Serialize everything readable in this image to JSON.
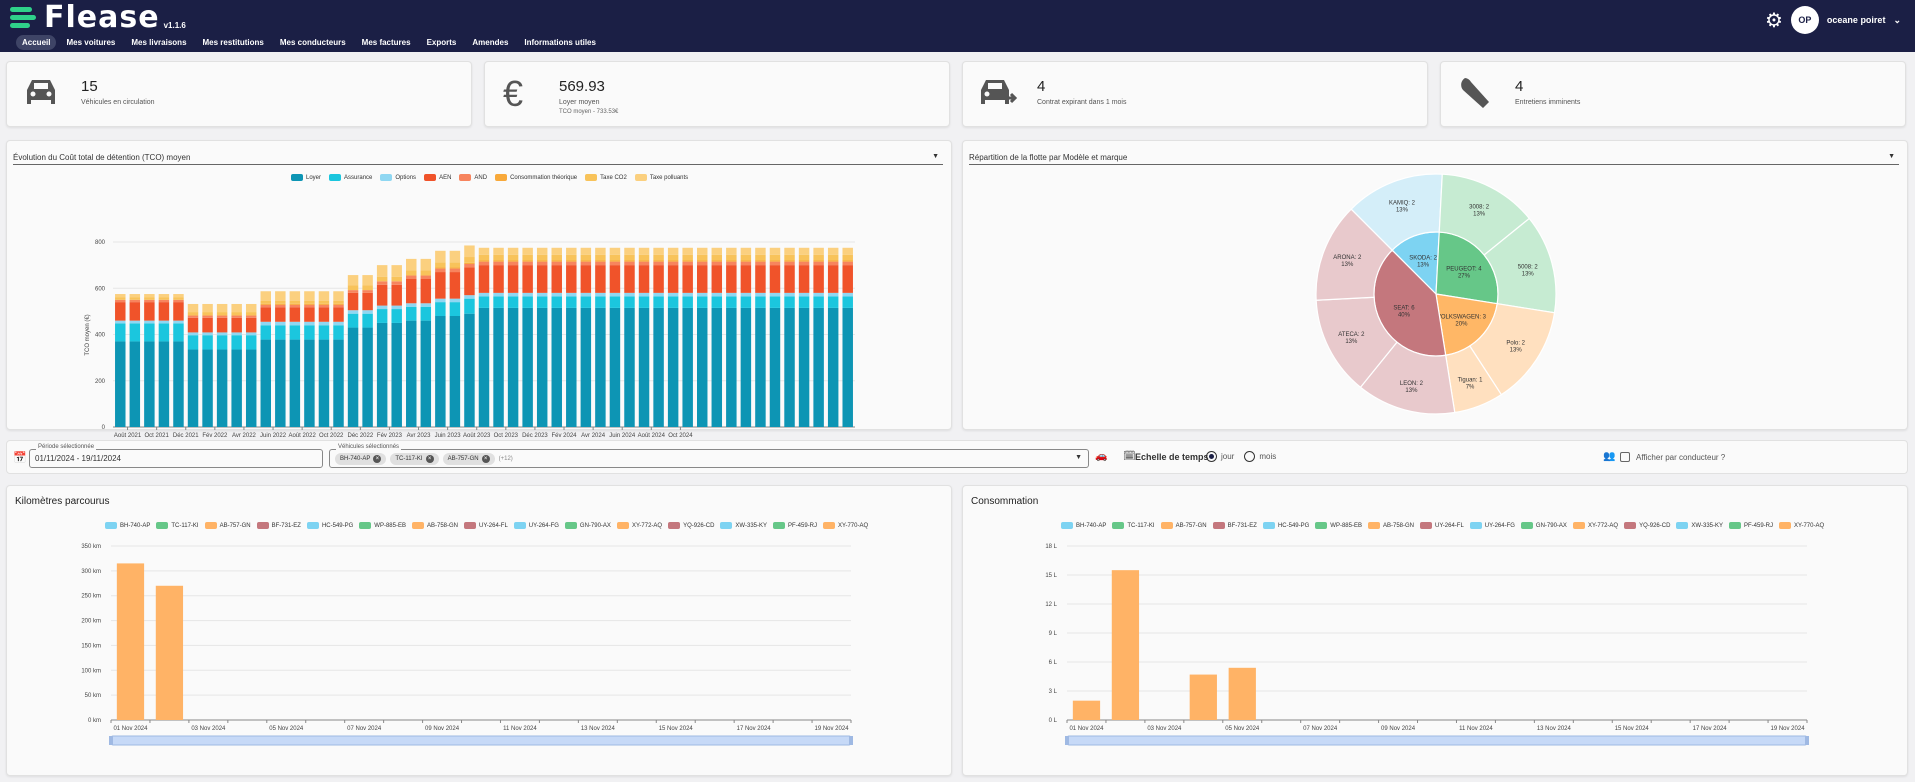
{
  "app": {
    "logo": "Flease",
    "version": "v1.1.6"
  },
  "nav": {
    "items": [
      "Accueil",
      "Mes voitures",
      "Mes livraisons",
      "Mes restitutions",
      "Mes conducteurs",
      "Mes factures",
      "Exports",
      "Amendes",
      "Informations utiles"
    ],
    "active": 0
  },
  "user": {
    "initials": "OP",
    "name": "oceane poiret"
  },
  "kpis": [
    {
      "value": "15",
      "label": "Véhicules en circulation",
      "sub": "",
      "icon": "car-icon"
    },
    {
      "value": "569.93",
      "label": "Loyer moyen",
      "sub": "TCO moyen - 733.53€",
      "icon": "euro-icon"
    },
    {
      "value": "4",
      "label": "Contrat expirant dans 1 mois",
      "sub": "",
      "icon": "car-return-icon"
    },
    {
      "value": "4",
      "label": "Entretiens imminents",
      "sub": "",
      "icon": "wrench-icon"
    }
  ],
  "tco_panel": {
    "select_prefix": "Évolution du",
    "select_value": "Coût total de détention (TCO) moyen"
  },
  "fleet_panel": {
    "select_prefix": "Répartition de la flotte par",
    "select_value": "Modèle et marque"
  },
  "filter": {
    "period_label": "Période sélectionnée",
    "period_value": "01/11/2024 - 19/11/2024",
    "vehicles_label": "Véhicules sélectionnés",
    "chips": [
      "BH-740-AP",
      "TC-117-KI",
      "AB-757-GN"
    ],
    "more": "(+12)",
    "scale_label": "Echelle de temps",
    "scale_options": [
      "jour",
      "mois"
    ],
    "scale_selected": "jour",
    "per_driver_label": "Afficher par conducteur ?"
  },
  "colors": {
    "tco": [
      "#0d95b4",
      "#1bc6de",
      "#8fd7f2",
      "#f0532a",
      "#f7845e",
      "#f8a93a",
      "#f8c35a",
      "#fbd07f"
    ]
  },
  "chart_data": [
    {
      "type": "bar",
      "stacked": true,
      "ylabel": "TCO moyen (€)",
      "ylim": [
        0,
        800
      ],
      "yticks": [
        0,
        200,
        400,
        600,
        800
      ],
      "tick_labels": [
        "Août 2021",
        "Oct 2021",
        "Déc 2021",
        "Fév 2022",
        "Avr 2022",
        "Juin 2022",
        "Août 2022",
        "Oct 2022",
        "Déc 2022",
        "Fév 2023",
        "Avr 2023",
        "Juin 2023",
        "Août 2023",
        "Oct 2023",
        "Déc 2023",
        "Fév 2024",
        "Avr 2024",
        "Juin 2024",
        "Août 2024",
        "Oct 2024"
      ],
      "series_names": [
        "Loyer",
        "Assurance",
        "Options",
        "AEN",
        "AND",
        "Consommation théorique",
        "Taxe CO2",
        "Taxe polluants"
      ],
      "groups": [
        {
          "count": 5,
          "v": [
            370,
            78,
            12,
            80,
            10,
            0,
            10,
            15
          ]
        },
        {
          "count": 5,
          "v": [
            335,
            62,
            12,
            63,
            10,
            0,
            15,
            35
          ]
        },
        {
          "count": 6,
          "v": [
            378,
            62,
            15,
            63,
            10,
            5,
            12,
            42
          ]
        },
        {
          "count": 2,
          "v": [
            430,
            60,
            15,
            75,
            12,
            0,
            20,
            45
          ]
        },
        {
          "count": 2,
          "v": [
            450,
            60,
            15,
            90,
            15,
            0,
            20,
            50
          ]
        },
        {
          "count": 2,
          "v": [
            460,
            60,
            15,
            105,
            15,
            0,
            22,
            50
          ]
        },
        {
          "count": 2,
          "v": [
            480,
            60,
            15,
            115,
            15,
            5,
            22,
            50
          ]
        },
        {
          "count": 1,
          "v": [
            490,
            65,
            15,
            120,
            15,
            5,
            25,
            50
          ]
        },
        {
          "count": 26,
          "v": [
            515,
            50,
            15,
            120,
            15,
            5,
            25,
            30
          ]
        }
      ]
    },
    {
      "type": "pie",
      "inner": [
        {
          "name": "SKODA",
          "count": 2,
          "pct": "13%",
          "color": "#7dd3f2"
        },
        {
          "name": "PEUGEOT",
          "count": 4,
          "pct": "27%",
          "color": "#66c788"
        },
        {
          "name": "VOLKSWAGEN",
          "count": 3,
          "pct": "20%",
          "color": "#ffb766"
        },
        {
          "name": "SEAT",
          "count": 6,
          "pct": "40%",
          "color": "#c4777d"
        }
      ],
      "outer": [
        {
          "name": "KAMIQ",
          "count": 2,
          "pct": "13%",
          "color": "#d4eef9"
        },
        {
          "name": "3008",
          "count": 2,
          "pct": "13%",
          "color": "#c6ebd2"
        },
        {
          "name": "5008",
          "count": 2,
          "pct": "13%",
          "color": "#c6ebd2"
        },
        {
          "name": "Polo",
          "count": 2,
          "pct": "13%",
          "color": "#ffe0bf"
        },
        {
          "name": "Tiguan",
          "count": 1,
          "pct": "7%",
          "color": "#ffe0bf"
        },
        {
          "name": "LEON",
          "count": 2,
          "pct": "13%",
          "color": "#e8c9cc"
        },
        {
          "name": "ATECA",
          "count": 2,
          "pct": "13%",
          "color": "#e8c9cc"
        },
        {
          "name": "ARONA",
          "count": 2,
          "pct": "13%",
          "color": "#e8c9cc"
        }
      ]
    },
    {
      "type": "bar",
      "title": "Kilomètres parcourus",
      "ylim": [
        0,
        350
      ],
      "yticks": [
        "0 km",
        "50 km",
        "100 km",
        "150 km",
        "200 km",
        "250 km",
        "300 km",
        "350 km"
      ],
      "categories": [
        "01 Nov 2024",
        "02 Nov 2024",
        "03 Nov 2024",
        "04 Nov 2024",
        "05 Nov 2024",
        "06 Nov 2024",
        "07 Nov 2024",
        "08 Nov 2024",
        "09 Nov 2024",
        "10 Nov 2024",
        "11 Nov 2024",
        "12 Nov 2024",
        "13 Nov 2024",
        "14 Nov 2024",
        "15 Nov 2024",
        "16 Nov 2024",
        "17 Nov 2024",
        "18 Nov 2024",
        "19 Nov 2024"
      ],
      "tick_labels": [
        "01 Nov 2024",
        "03 Nov 2024",
        "05 Nov 2024",
        "07 Nov 2024",
        "09 Nov 2024",
        "11 Nov 2024",
        "13 Nov 2024",
        "15 Nov 2024",
        "17 Nov 2024",
        "19 Nov 2024"
      ],
      "values": [
        315,
        270,
        0,
        0,
        0,
        0,
        0,
        0,
        0,
        0,
        0,
        0,
        0,
        0,
        0,
        0,
        0,
        0,
        0
      ],
      "bar_color": "#ffb366"
    },
    {
      "type": "bar",
      "title": "Consommation",
      "ylim": [
        0,
        18
      ],
      "yticks": [
        "0 L",
        "3 L",
        "6 L",
        "9 L",
        "12 L",
        "15 L",
        "18 L"
      ],
      "categories": [
        "01 Nov 2024",
        "02 Nov 2024",
        "03 Nov 2024",
        "04 Nov 2024",
        "05 Nov 2024",
        "06 Nov 2024",
        "07 Nov 2024",
        "08 Nov 2024",
        "09 Nov 2024",
        "10 Nov 2024",
        "11 Nov 2024",
        "12 Nov 2024",
        "13 Nov 2024",
        "14 Nov 2024",
        "15 Nov 2024",
        "16 Nov 2024",
        "17 Nov 2024",
        "18 Nov 2024",
        "19 Nov 2024"
      ],
      "tick_labels": [
        "01 Nov 2024",
        "03 Nov 2024",
        "05 Nov 2024",
        "07 Nov 2024",
        "09 Nov 2024",
        "11 Nov 2024",
        "13 Nov 2024",
        "15 Nov 2024",
        "17 Nov 2024",
        "19 Nov 2024"
      ],
      "values": [
        2,
        15.5,
        0,
        4.7,
        5.4,
        0,
        0,
        0,
        0,
        0,
        0,
        0,
        0,
        0,
        0,
        0,
        0,
        0,
        0
      ],
      "bar_color": "#ffb366"
    }
  ],
  "vehicle_legend": [
    {
      "name": "BH-740-AP",
      "color": "#7dd3f2"
    },
    {
      "name": "TC-117-KI",
      "color": "#66c788"
    },
    {
      "name": "AB-757-GN",
      "color": "#ffb366"
    },
    {
      "name": "BF-731-EZ",
      "color": "#c4777d"
    },
    {
      "name": "HC-549-PG",
      "color": "#7dd3f2"
    },
    {
      "name": "WP-885-EB",
      "color": "#66c788"
    },
    {
      "name": "AB-758-GN",
      "color": "#ffb366"
    },
    {
      "name": "UY-264-FL",
      "color": "#c4777d"
    },
    {
      "name": "UY-264-FG",
      "color": "#7dd3f2"
    },
    {
      "name": "GN-790-AX",
      "color": "#66c788"
    },
    {
      "name": "XY-772-AQ",
      "color": "#ffb366"
    },
    {
      "name": "YQ-926-CD",
      "color": "#c4777d"
    },
    {
      "name": "XW-335-KY",
      "color": "#7dd3f2"
    },
    {
      "name": "PF-459-RJ",
      "color": "#66c788"
    },
    {
      "name": "XY-770-AQ",
      "color": "#ffb366"
    }
  ]
}
